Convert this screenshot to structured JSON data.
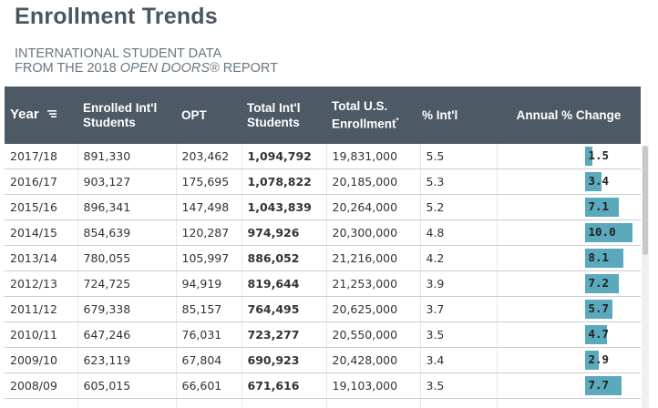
{
  "header": {
    "title": "Enrollment Trends",
    "subtitle_line1": "INTERNATIONAL STUDENT DATA",
    "subtitle_line2_prefix": "FROM THE 2018 ",
    "subtitle_line2_italic": "OPEN DOORS",
    "subtitle_line2_suffix": "® REPORT"
  },
  "table": {
    "columns": {
      "year": "Year",
      "enrolled_l1": "Enrolled Int'l",
      "enrolled_l2": "Students",
      "opt": "OPT",
      "total_intl_l1": "Total Int'l",
      "total_intl_l2": "Students",
      "total_us_l1": "Total U.S.",
      "total_us_l2": "Enrollment",
      "total_us_mark": "*",
      "pct_intl": "% Int'l",
      "annual_change": "Annual % Change"
    },
    "rows": [
      {
        "year": "2017/18",
        "enrolled": "891,330",
        "opt": "203,462",
        "total_intl": "1,094,792",
        "total_us": "19,831,000",
        "pct_intl": "5.5",
        "change": "1.5",
        "change_value": 1.5
      },
      {
        "year": "2016/17",
        "enrolled": "903,127",
        "opt": "175,695",
        "total_intl": "1,078,822",
        "total_us": "20,185,000",
        "pct_intl": "5.3",
        "change": "3.4",
        "change_value": 3.4
      },
      {
        "year": "2015/16",
        "enrolled": "896,341",
        "opt": "147,498",
        "total_intl": "1,043,839",
        "total_us": "20,264,000",
        "pct_intl": "5.2",
        "change": "7.1",
        "change_value": 7.1
      },
      {
        "year": "2014/15",
        "enrolled": "854,639",
        "opt": "120,287",
        "total_intl": "974,926",
        "total_us": "20,300,000",
        "pct_intl": "4.8",
        "change": "10.0",
        "change_value": 10.0
      },
      {
        "year": "2013/14",
        "enrolled": "780,055",
        "opt": "105,997",
        "total_intl": "886,052",
        "total_us": "21,216,000",
        "pct_intl": "4.2",
        "change": "8.1",
        "change_value": 8.1
      },
      {
        "year": "2012/13",
        "enrolled": "724,725",
        "opt": "94,919",
        "total_intl": "819,644",
        "total_us": "21,253,000",
        "pct_intl": "3.9",
        "change": "7.2",
        "change_value": 7.2
      },
      {
        "year": "2011/12",
        "enrolled": "679,338",
        "opt": "85,157",
        "total_intl": "764,495",
        "total_us": "20,625,000",
        "pct_intl": "3.7",
        "change": "5.7",
        "change_value": 5.7
      },
      {
        "year": "2010/11",
        "enrolled": "647,246",
        "opt": "76,031",
        "total_intl": "723,277",
        "total_us": "20,550,000",
        "pct_intl": "3.5",
        "change": "4.7",
        "change_value": 4.7
      },
      {
        "year": "2009/10",
        "enrolled": "623,119",
        "opt": "67,804",
        "total_intl": "690,923",
        "total_us": "20,428,000",
        "pct_intl": "3.4",
        "change": "2.9",
        "change_value": 2.9
      },
      {
        "year": "2008/09",
        "enrolled": "605,015",
        "opt": "66,601",
        "total_intl": "671,616",
        "total_us": "19,103,000",
        "pct_intl": "3.5",
        "change": "7.7",
        "change_value": 7.7
      }
    ]
  },
  "colors": {
    "header_bg": "#4d5a66",
    "bar": "#5aa9bd",
    "title": "#4a5560"
  },
  "icons": {
    "sort_filter": "filter-icon"
  }
}
